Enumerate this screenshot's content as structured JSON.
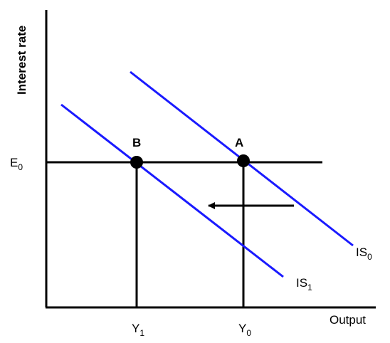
{
  "axes": {
    "y_label": "Interest rate",
    "x_label": "Output"
  },
  "levels": {
    "e0": {
      "base": "E",
      "sub": "0"
    },
    "y0": {
      "base": "Y",
      "sub": "0"
    },
    "y1": {
      "base": "Y",
      "sub": "1"
    }
  },
  "curves": {
    "is0": {
      "base": "IS",
      "sub": "0"
    },
    "is1": {
      "base": "IS",
      "sub": "1"
    }
  },
  "points": {
    "a": "A",
    "b": "B"
  },
  "colors": {
    "curve": "#1a1aff",
    "ink": "#000000",
    "background": "#ffffff"
  },
  "annotations": {
    "shift_arrow": "leftward shift"
  }
}
